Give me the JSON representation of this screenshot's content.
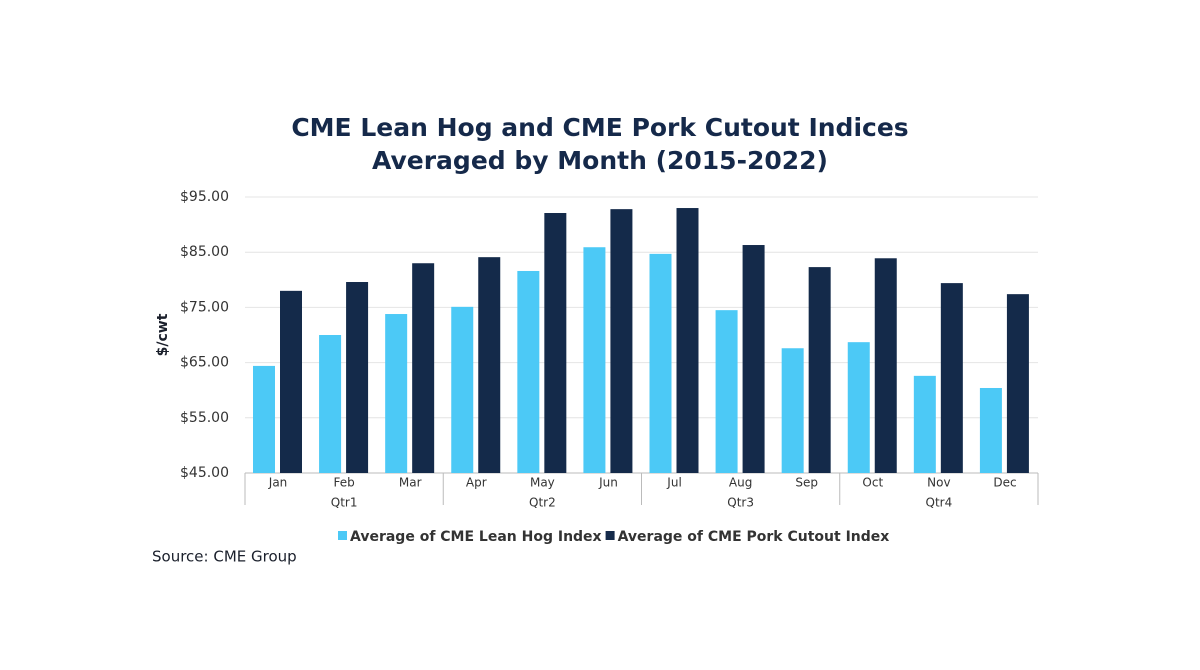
{
  "chart_data": {
    "type": "bar",
    "title": [
      "CME Lean Hog and CME Pork Cutout Indices",
      "Averaged by Month (2015-2022)"
    ],
    "ylabel": "$/cwt",
    "source": "Source: CME Group",
    "categories": [
      "Jan",
      "Feb",
      "Mar",
      "Apr",
      "May",
      "Jun",
      "Jul",
      "Aug",
      "Sep",
      "Oct",
      "Nov",
      "Dec"
    ],
    "quarters": [
      "Qtr1",
      "Qtr2",
      "Qtr3",
      "Qtr4"
    ],
    "series": [
      {
        "name": "Average of CME Lean Hog Index",
        "color": "#4cc9f6",
        "values": [
          64.4,
          70.0,
          73.8,
          75.1,
          81.6,
          85.9,
          84.7,
          74.5,
          67.6,
          68.7,
          62.6,
          60.4
        ]
      },
      {
        "name": "Average of CME Pork Cutout Index",
        "color": "#142a4a",
        "values": [
          78.0,
          79.6,
          83.0,
          84.1,
          92.1,
          92.8,
          93.0,
          86.3,
          82.3,
          83.9,
          79.4,
          77.4
        ]
      }
    ],
    "ylim": [
      45,
      95
    ],
    "yticks": [
      {
        "value": 45,
        "label": "$45.00"
      },
      {
        "value": 55,
        "label": "$55.00"
      },
      {
        "value": 65,
        "label": "$65.00"
      },
      {
        "value": 75,
        "label": "$75.00"
      },
      {
        "value": 85,
        "label": "$85.00"
      },
      {
        "value": 95,
        "label": "$95.00"
      }
    ],
    "grid": true
  }
}
